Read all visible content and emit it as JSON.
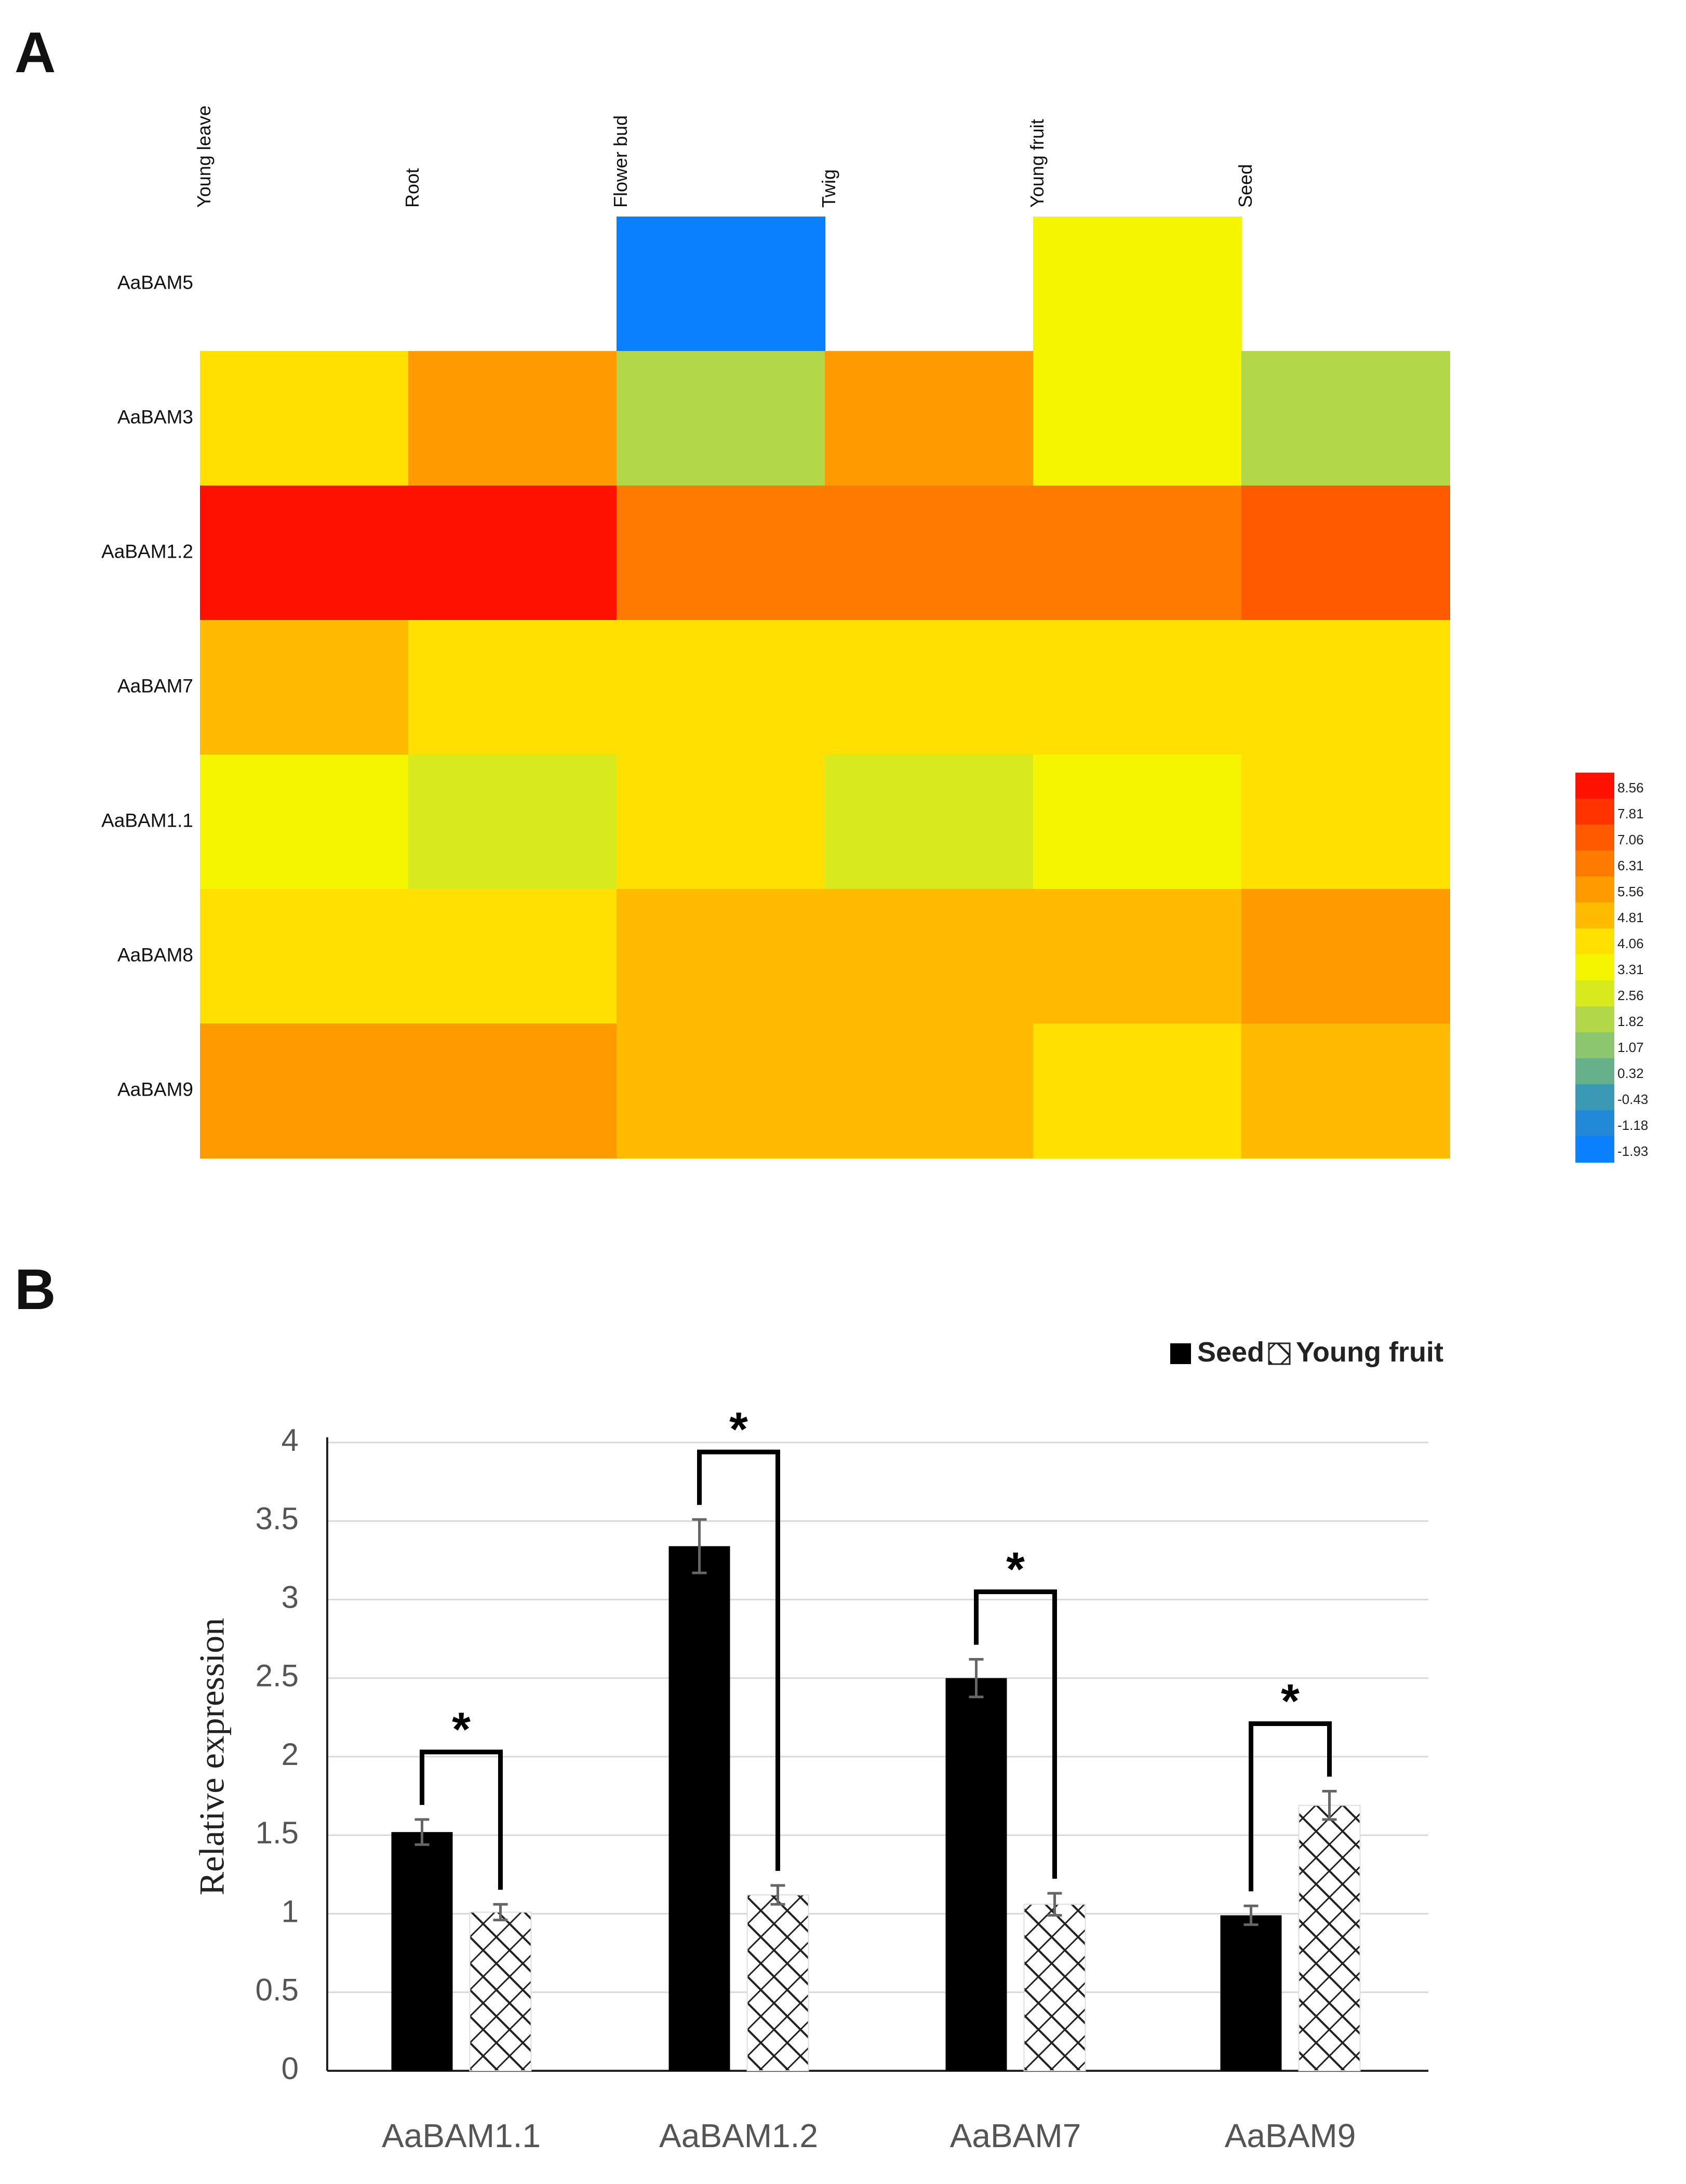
{
  "panels": {
    "a_label": "A",
    "b_label": "B"
  },
  "chart_data": [
    {
      "type": "heatmap",
      "columns": [
        "Young leave",
        "Root",
        "Flower bud",
        "Twig",
        "Young fruit",
        "Seed"
      ],
      "rows": [
        "AaBAM5",
        "AaBAM3",
        "AaBAM1.2",
        "AaBAM7",
        "AaBAM1.1",
        "AaBAM8",
        "AaBAM9"
      ],
      "values": [
        [
          null,
          null,
          -1.93,
          null,
          3.31,
          null
        ],
        [
          4.06,
          5.56,
          1.82,
          5.56,
          3.31,
          1.82
        ],
        [
          8.56,
          8.56,
          6.31,
          6.31,
          6.31,
          7.06
        ],
        [
          4.81,
          4.06,
          4.06,
          4.06,
          4.06,
          4.06
        ],
        [
          3.31,
          2.56,
          4.06,
          2.56,
          3.31,
          4.06
        ],
        [
          4.06,
          4.06,
          4.81,
          4.81,
          4.81,
          5.56
        ],
        [
          5.56,
          5.56,
          4.81,
          4.81,
          4.06,
          4.81
        ]
      ],
      "scale": {
        "ticks": [
          "8.56",
          "7.81",
          "7.06",
          "6.31",
          "5.56",
          "4.81",
          "4.06",
          "3.31",
          "2.56",
          "1.82",
          "1.07",
          "0.32",
          "-0.43",
          "-1.18",
          "-1.93"
        ],
        "colors": [
          "#ff1100",
          "#ff3300",
          "#ff5a00",
          "#ff7a00",
          "#ff9a00",
          "#ffbb00",
          "#ffe000",
          "#f5f500",
          "#d8ea1e",
          "#b2d84a",
          "#8cc66e",
          "#66b08c",
          "#3a9ab6",
          "#2288d8",
          "#0a80ff"
        ]
      }
    },
    {
      "type": "bar",
      "categories": [
        "AaBAM1.1",
        "AaBAM1.2",
        "AaBAM7",
        "AaBAM9"
      ],
      "series": [
        {
          "name": "Seed",
          "values": [
            1.52,
            3.34,
            2.5,
            0.99
          ],
          "errors": [
            0.08,
            0.17,
            0.12,
            0.06
          ],
          "color": "#000000"
        },
        {
          "name": "Young fruit",
          "values": [
            1.01,
            1.12,
            1.06,
            1.69
          ],
          "errors": [
            0.05,
            0.06,
            0.07,
            0.09
          ],
          "color": "#ffffff"
        }
      ],
      "ylabel": "Relative  expression",
      "xlabel": "",
      "ylim": [
        0,
        4
      ],
      "yticks": [
        "0",
        "0.5",
        "1",
        "1.5",
        "2",
        "2.5",
        "3",
        "3.5",
        "4"
      ],
      "ytick_values": [
        0,
        0.5,
        1,
        1.5,
        2,
        2.5,
        3,
        3.5,
        4
      ],
      "significance": [
        "*",
        "*",
        "*",
        "*"
      ],
      "legend": [
        "Seed",
        "Young fruit"
      ],
      "legend_position": "top-right",
      "grid": true
    }
  ]
}
